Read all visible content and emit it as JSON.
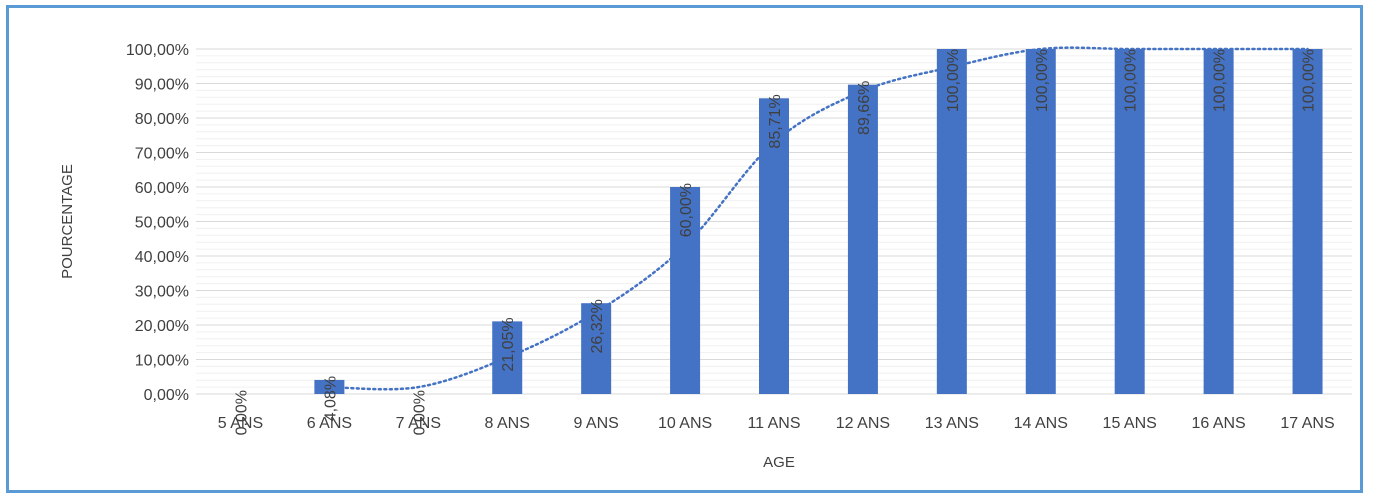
{
  "chart_data": {
    "type": "bar",
    "title": "",
    "xlabel": "AGE",
    "ylabel": "POURCENTAGE",
    "ylim": [
      0,
      100
    ],
    "yticks": [
      "0,00%",
      "10,00%",
      "20,00%",
      "30,00%",
      "40,00%",
      "50,00%",
      "60,00%",
      "70,00%",
      "80,00%",
      "90,00%",
      "100,00%"
    ],
    "categories": [
      "5 ANS",
      "6 ANS",
      "7 ANS",
      "8 ANS",
      "9 ANS",
      "10 ANS",
      "11 ANS",
      "12 ANS",
      "13 ANS",
      "14 ANS",
      "15 ANS",
      "16 ANS",
      "17 ANS"
    ],
    "values": [
      0,
      4.08,
      0,
      21.05,
      26.32,
      60,
      85.71,
      89.66,
      100,
      100,
      100,
      100,
      100
    ],
    "data_labels": [
      "0,00%",
      "4,08%",
      "0,00%",
      "21,05%",
      "26,32%",
      "60,00%",
      "85,71%",
      "89,66%",
      "100,00%",
      "100,00%",
      "100,00%",
      "100,00%",
      "100,00%"
    ],
    "trendline": {
      "style": "dotted",
      "from_category": "6 ANS",
      "to_category": "17 ANS",
      "values": [
        2,
        2,
        10.6,
        23.7,
        43,
        72.9,
        87.8,
        94.8,
        100,
        100,
        100,
        100
      ]
    },
    "grid": true,
    "minor_grid": true,
    "legend": "none",
    "colors": {
      "bar": "#4472c4",
      "trendline": "#4472c4",
      "grid": "#d9d9d9",
      "minor_grid": "#f0f0f0",
      "text": "#404040",
      "frame": "#5b9bd5"
    }
  }
}
